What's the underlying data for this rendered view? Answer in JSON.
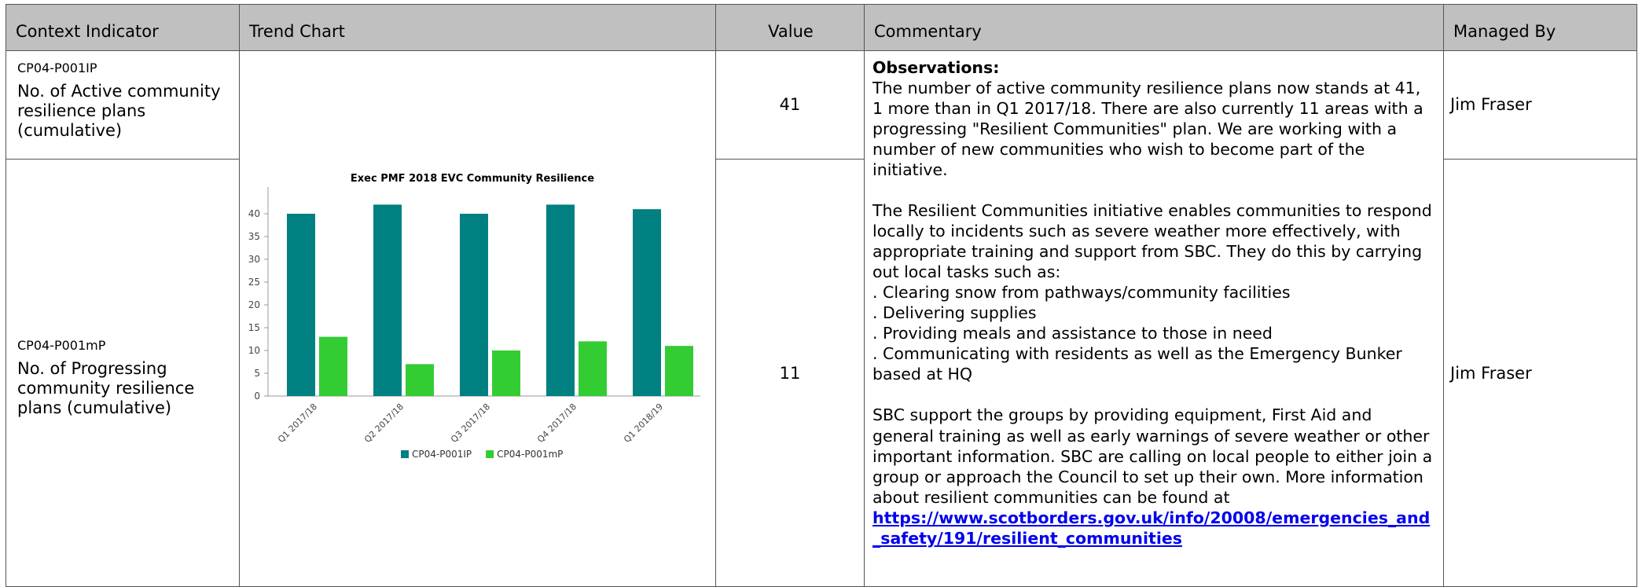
{
  "table": {
    "headers": [
      "Context Indicator",
      "Trend Chart",
      "Value",
      "Commentary",
      "Managed By"
    ],
    "rows": [
      {
        "code": "CP04-P001IP",
        "name": "No. of Active community resilience plans (cumulative)",
        "value": "41",
        "managed_by": "Jim Fraser"
      },
      {
        "code": "CP04-P001mP",
        "name": "No. of Progressing community resilience plans (cumulative)",
        "value": "11",
        "managed_by": "Jim Fraser"
      }
    ]
  },
  "commentary": {
    "heading": "Observations:",
    "paragraphs": [
      [
        "The number of active community resilience plans now stands at 41, 1 more than in Q1 2017/18. There are also currently 11 areas with a progressing \"Resilient Communities\" plan. We are working with a number of new communities who wish to become part of the initiative."
      ],
      [
        "The Resilient Communities initiative enables communities to respond locally to incidents such as severe weather more effectively, with appropriate training and support from SBC. They do this by carrying out local tasks such as:",
        ". Clearing snow from pathways/community facilities",
        ". Delivering supplies",
        ". Providing meals and assistance to those in need",
        ". Communicating with residents as well as the Emergency Bunker based at HQ"
      ],
      [
        "SBC support the groups by providing equipment, First Aid and general training as well as early warnings of severe weather or other important information. SBC are calling on local people to either join a group or approach the Council to set up their own. More information about resilient communities can be found at"
      ]
    ],
    "link": "https://www.scotborders.gov.uk/info/20008/emergencies_and_safety/191/resilient_communities"
  },
  "chart_data": {
    "type": "bar",
    "title": "Exec PMF 2018 EVC Community Resilience",
    "categories": [
      "Q1 2017/18",
      "Q2 2017/18",
      "Q3 2017/18",
      "Q4 2017/18",
      "Q1 2018/19"
    ],
    "series": [
      {
        "name": "CP04-P001IP",
        "color": "#008080",
        "values": [
          40,
          42,
          40,
          42,
          41
        ]
      },
      {
        "name": "CP04-P001mP",
        "color": "#33cc33",
        "values": [
          13,
          7,
          10,
          12,
          11
        ]
      }
    ],
    "ylim": [
      0,
      45
    ],
    "yticks": [
      0,
      5,
      10,
      15,
      20,
      25,
      30,
      35,
      40
    ],
    "grid": false,
    "legend": "bottom"
  }
}
